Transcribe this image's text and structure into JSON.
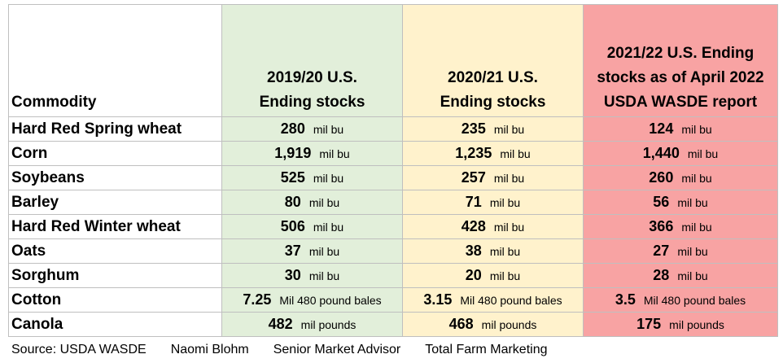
{
  "table": {
    "header": [
      [
        "Commodity"
      ],
      [
        "2019/20  U.S.",
        "Ending stocks"
      ],
      [
        "2020/21 U.S.",
        "Ending stocks"
      ],
      [
        "2021/22 U.S. Ending",
        "stocks as of April 2022",
        "USDA WASDE report"
      ]
    ],
    "rows": [
      [
        "Hard Red Spring wheat",
        {
          "value": "280",
          "unit": "mil bu"
        },
        {
          "value": "235",
          "unit": "mil bu"
        },
        {
          "value": "124",
          "unit": "mil bu"
        }
      ],
      [
        "Corn",
        {
          "value": "1,919",
          "unit": "mil bu"
        },
        {
          "value": "1,235",
          "unit": "mil bu"
        },
        {
          "value": "1,440",
          "unit": "mil bu"
        }
      ],
      [
        "Soybeans",
        {
          "value": "525",
          "unit": "mil bu"
        },
        {
          "value": "257",
          "unit": "mil bu"
        },
        {
          "value": "260",
          "unit": "mil bu"
        }
      ],
      [
        "Barley",
        {
          "value": "80",
          "unit": "mil bu"
        },
        {
          "value": "71",
          "unit": "mil bu"
        },
        {
          "value": "56",
          "unit": "mil bu"
        }
      ],
      [
        "Hard Red Winter wheat",
        {
          "value": "506",
          "unit": "mil bu"
        },
        {
          "value": "428",
          "unit": "mil bu"
        },
        {
          "value": "366",
          "unit": "mil bu"
        }
      ],
      [
        "Oats",
        {
          "value": "37",
          "unit": "mil bu"
        },
        {
          "value": "38",
          "unit": "mil bu"
        },
        {
          "value": "27",
          "unit": "mil bu"
        }
      ],
      [
        "Sorghum",
        {
          "value": "30",
          "unit": "mil bu"
        },
        {
          "value": "20",
          "unit": "mil bu"
        },
        {
          "value": "28",
          "unit": "mil bu"
        }
      ],
      [
        "Cotton",
        {
          "value": "7.25",
          "unit": "Mil 480 pound bales"
        },
        {
          "value": "3.15",
          "unit": "Mil 480 pound bales"
        },
        {
          "value": "3.5",
          "unit": "Mil 480 pound bales"
        }
      ],
      [
        "Canola",
        {
          "value": "482",
          "unit": "mil pounds"
        },
        {
          "value": "468",
          "unit": "mil pounds"
        },
        {
          "value": "175",
          "unit": "mil pounds"
        }
      ]
    ],
    "column_colors": [
      "#ffffff",
      "#e2efda",
      "#fff2cc",
      "#f8a3a3"
    ]
  },
  "footer": [
    "Source: USDA WASDE",
    "Naomi Blohm",
    "Senior Market Advisor",
    "Total Farm Marketing"
  ]
}
